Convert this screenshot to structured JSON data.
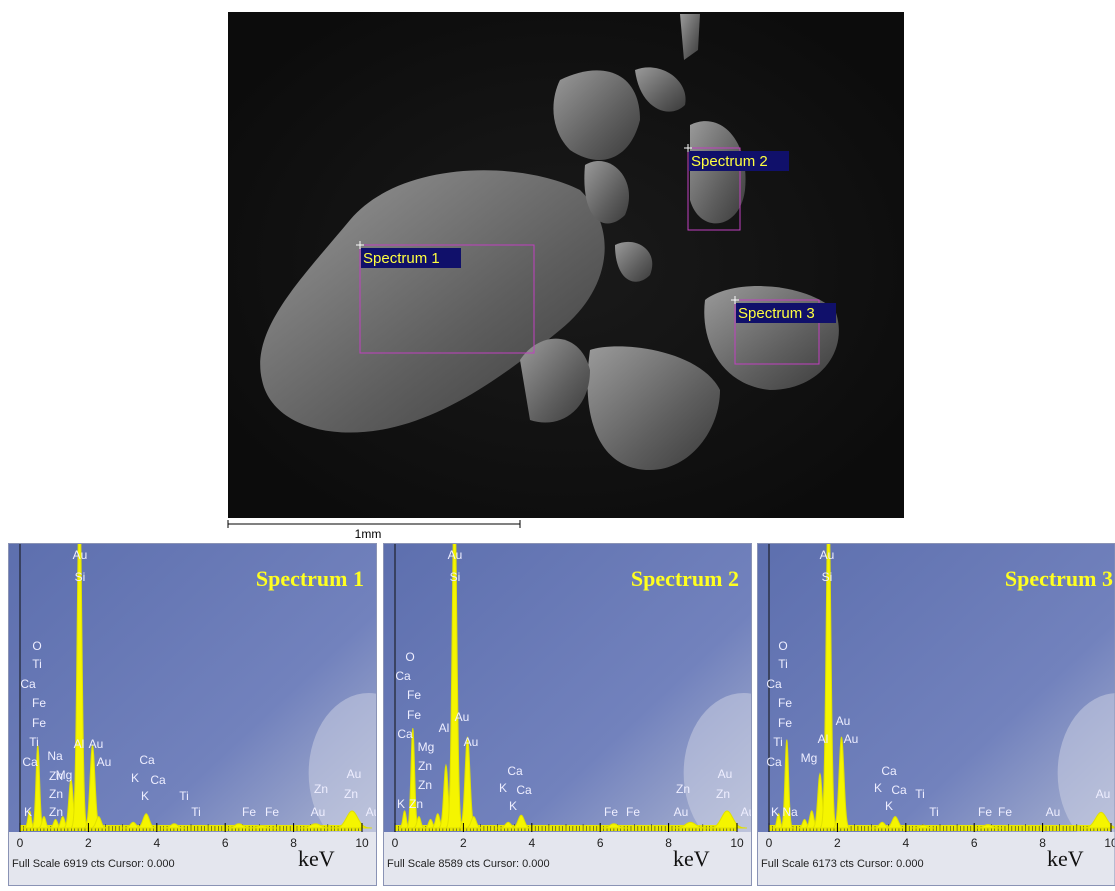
{
  "sem_image": {
    "regions": [
      {
        "label": "Spectrum 1"
      },
      {
        "label": "Spectrum 2"
      },
      {
        "label": "Spectrum 3"
      }
    ],
    "scale_bar": "1mm"
  },
  "spectra": [
    {
      "title": "Spectrum 1",
      "footer": "Full Scale 6919 cts Cursor: 0.000",
      "unit": "keV",
      "xlim": [
        0,
        10
      ],
      "ylim": [
        0,
        1000
      ],
      "xticks": [
        0,
        2,
        4,
        6,
        8,
        10
      ],
      "peaks": [
        {
          "x": 0.28,
          "height": 60
        },
        {
          "x": 0.52,
          "height": 290
        },
        {
          "x": 0.7,
          "height": 40
        },
        {
          "x": 1.04,
          "height": 30
        },
        {
          "x": 1.25,
          "height": 40
        },
        {
          "x": 1.49,
          "height": 170
        },
        {
          "x": 1.74,
          "height": 1200
        },
        {
          "x": 2.12,
          "height": 290
        },
        {
          "x": 2.3,
          "height": 40
        },
        {
          "x": 3.31,
          "height": 20
        },
        {
          "x": 3.69,
          "height": 50
        },
        {
          "x": 4.51,
          "height": 15
        },
        {
          "x": 6.4,
          "height": 15
        },
        {
          "x": 7.06,
          "height": 8
        },
        {
          "x": 8.64,
          "height": 15
        },
        {
          "x": 9.71,
          "height": 60
        }
      ],
      "element_labels": [
        "Au",
        "Si",
        "O",
        "Ti",
        "Ca",
        "Fe",
        "Fe",
        "Ti",
        "Ca",
        "Na",
        "Mg",
        "Al",
        "Au",
        "Au",
        "Zn",
        "Zn",
        "Zn",
        "K",
        "Ca",
        "K",
        "Ca",
        "K",
        "Ti",
        "Ti",
        "Fe",
        "Fe",
        "Zn",
        "Au",
        "Zn",
        "Au",
        "Au"
      ]
    },
    {
      "title": "Spectrum 2",
      "footer": "Full Scale 8589 cts Cursor: 0.000",
      "unit": "keV",
      "xlim": [
        0,
        10
      ],
      "ylim": [
        0,
        1000
      ],
      "xticks": [
        0,
        2,
        4,
        6,
        8,
        10
      ],
      "peaks": [
        {
          "x": 0.28,
          "height": 60
        },
        {
          "x": 0.52,
          "height": 350
        },
        {
          "x": 0.7,
          "height": 40
        },
        {
          "x": 1.04,
          "height": 30
        },
        {
          "x": 1.25,
          "height": 50
        },
        {
          "x": 1.49,
          "height": 220
        },
        {
          "x": 1.74,
          "height": 1200
        },
        {
          "x": 2.12,
          "height": 320
        },
        {
          "x": 2.3,
          "height": 40
        },
        {
          "x": 3.31,
          "height": 20
        },
        {
          "x": 3.69,
          "height": 45
        },
        {
          "x": 6.4,
          "height": 15
        },
        {
          "x": 8.64,
          "height": 20
        },
        {
          "x": 9.71,
          "height": 60
        }
      ],
      "element_labels": [
        "Au",
        "Si",
        "O",
        "Ca",
        "Fe",
        "Fe",
        "Ca",
        "Al",
        "Au",
        "Mg",
        "Au",
        "Zn",
        "Zn",
        "K",
        "Zn",
        "Ca",
        "K",
        "Ca",
        "K",
        "Fe",
        "Fe",
        "Zn",
        "Au",
        "Au",
        "Zn",
        "Au"
      ]
    },
    {
      "title": "Spectrum 3",
      "footer": "Full Scale 6173 cts Cursor: 0.000",
      "unit": "keV",
      "xlim": [
        0,
        10
      ],
      "ylim": [
        0,
        1000
      ],
      "xticks": [
        0,
        2,
        4,
        6,
        8,
        10
      ],
      "peaks": [
        {
          "x": 0.28,
          "height": 50
        },
        {
          "x": 0.52,
          "height": 310
        },
        {
          "x": 1.04,
          "height": 30
        },
        {
          "x": 1.25,
          "height": 60
        },
        {
          "x": 1.49,
          "height": 190
        },
        {
          "x": 1.74,
          "height": 1200
        },
        {
          "x": 2.12,
          "height": 320
        },
        {
          "x": 3.31,
          "height": 20
        },
        {
          "x": 3.69,
          "height": 40
        },
        {
          "x": 4.51,
          "height": 10
        },
        {
          "x": 6.4,
          "height": 12
        },
        {
          "x": 9.71,
          "height": 55
        }
      ],
      "element_labels": [
        "Au",
        "Si",
        "O",
        "Ti",
        "Ca",
        "Fe",
        "Fe",
        "Ti",
        "Ca",
        "Au",
        "Al",
        "Au",
        "Mg",
        "Ca",
        "K",
        "Ca",
        "Ti",
        "K",
        "Ti",
        "Fe",
        "Fe",
        "K",
        "Na",
        "Au",
        "Au"
      ]
    }
  ]
}
